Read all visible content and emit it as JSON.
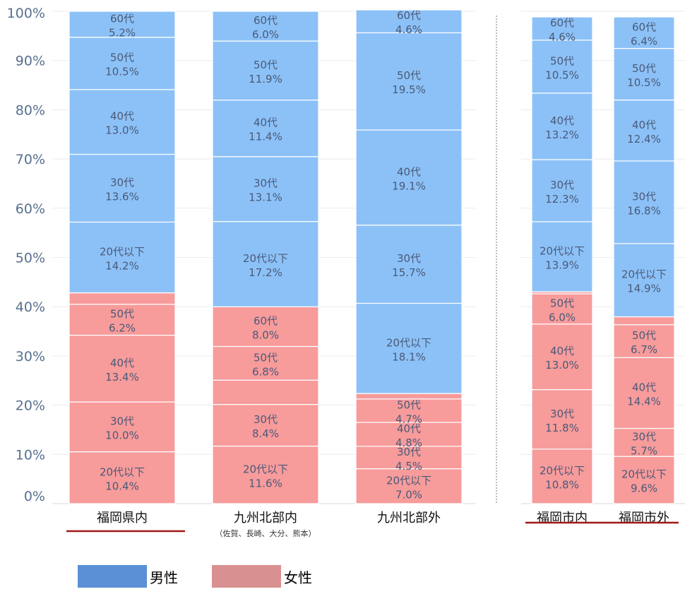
{
  "chart_data": {
    "type": "bar",
    "stacked": true,
    "ylim": [
      0,
      100
    ],
    "yticks": [
      "0%",
      "10%",
      "20%",
      "30%",
      "40%",
      "50%",
      "60%",
      "70%",
      "80%",
      "90%",
      "100%"
    ],
    "grid": true,
    "legend_placement": "bottom-left",
    "colors": {
      "male": "#8cc1f7",
      "female": "#f79b9b",
      "male_legend": "#5b8fd6",
      "female_legend": "#d99090",
      "text": "#4a5a78",
      "axis": "#58708f",
      "underline": "#a01818"
    },
    "legend": [
      {
        "key": "male",
        "label": "男性"
      },
      {
        "key": "female",
        "label": "女性"
      }
    ],
    "categories": [
      {
        "label": "福岡県内",
        "sublabel": "",
        "underline": true,
        "group": 1
      },
      {
        "label": "九州北部内",
        "sublabel": "（佐賀、長崎、大分、熊本）",
        "underline": false,
        "group": 1
      },
      {
        "label": "九州北部外",
        "sublabel": "",
        "underline": false,
        "group": 1
      },
      {
        "label": "福岡市内",
        "sublabel": "",
        "underline": true,
        "group": 2
      },
      {
        "label": "福岡市外",
        "sublabel": "",
        "underline": true,
        "group": 2
      }
    ],
    "bars": [
      {
        "segments": [
          {
            "gender": "female",
            "age": "20代以下",
            "value": 10.4,
            "label": "10.4%"
          },
          {
            "gender": "female",
            "age": "30代",
            "value": 10.0,
            "label": "10.0%"
          },
          {
            "gender": "female",
            "age": "40代",
            "value": 13.4,
            "label": "13.4%"
          },
          {
            "gender": "female",
            "age": "50代",
            "value": 6.2,
            "label": "6.2%"
          },
          {
            "gender": "female",
            "age": "",
            "value": 2.3,
            "label": ""
          },
          {
            "gender": "male",
            "age": "20代以下",
            "value": 14.2,
            "label": "14.2%"
          },
          {
            "gender": "male",
            "age": "30代",
            "value": 13.6,
            "label": "13.6%"
          },
          {
            "gender": "male",
            "age": "40代",
            "value": 13.0,
            "label": "13.0%"
          },
          {
            "gender": "male",
            "age": "50代",
            "value": 10.5,
            "label": "10.5%"
          },
          {
            "gender": "male",
            "age": "60代",
            "value": 5.2,
            "label": "5.2%"
          }
        ]
      },
      {
        "segments": [
          {
            "gender": "female",
            "age": "20代以下",
            "value": 11.6,
            "label": "11.6%"
          },
          {
            "gender": "female",
            "age": "30代",
            "value": 8.4,
            "label": "8.4%"
          },
          {
            "gender": "female",
            "age": "",
            "value": 4.9,
            "label": ""
          },
          {
            "gender": "female",
            "age": "50代",
            "value": 6.8,
            "label": "6.8%"
          },
          {
            "gender": "female",
            "age": "60代",
            "value": 8.0,
            "label": "8.0%"
          },
          {
            "gender": "male",
            "age": "20代以下",
            "value": 17.2,
            "label": "17.2%"
          },
          {
            "gender": "male",
            "age": "30代",
            "value": 13.1,
            "label": "13.1%"
          },
          {
            "gender": "male",
            "age": "40代",
            "value": 11.4,
            "label": "11.4%"
          },
          {
            "gender": "male",
            "age": "50代",
            "value": 11.9,
            "label": "11.9%"
          },
          {
            "gender": "male",
            "age": "60代",
            "value": 6.0,
            "label": "6.0%"
          }
        ]
      },
      {
        "segments": [
          {
            "gender": "female",
            "age": "20代以下",
            "value": 7.0,
            "label": "7.0%"
          },
          {
            "gender": "female",
            "age": "30代",
            "value": 4.5,
            "label": "4.5%"
          },
          {
            "gender": "female",
            "age": "40代",
            "value": 4.8,
            "label": "4.8%"
          },
          {
            "gender": "female",
            "age": "50代",
            "value": 4.7,
            "label": "4.7%"
          },
          {
            "gender": "female",
            "age": "",
            "value": 1.1,
            "label": ""
          },
          {
            "gender": "male",
            "age": "20代以下",
            "value": 18.1,
            "label": "18.1%"
          },
          {
            "gender": "male",
            "age": "30代",
            "value": 15.7,
            "label": "15.7%"
          },
          {
            "gender": "male",
            "age": "40代",
            "value": 19.1,
            "label": "19.1%"
          },
          {
            "gender": "male",
            "age": "50代",
            "value": 19.5,
            "label": "19.5%"
          },
          {
            "gender": "male",
            "age": "60代",
            "value": 4.6,
            "label": "4.6%"
          }
        ]
      },
      {
        "segments": [
          {
            "gender": "female",
            "age": "20代以下",
            "value": 10.8,
            "label": "10.8%"
          },
          {
            "gender": "female",
            "age": "30代",
            "value": 11.8,
            "label": "11.8%"
          },
          {
            "gender": "female",
            "age": "40代",
            "value": 13.0,
            "label": "13.0%"
          },
          {
            "gender": "female",
            "age": "50代",
            "value": 6.0,
            "label": "6.0%"
          },
          {
            "gender": "female",
            "age": "",
            "value": 0.4,
            "label": ""
          },
          {
            "gender": "male",
            "age": "20代以下",
            "value": 13.9,
            "label": "13.9%"
          },
          {
            "gender": "male",
            "age": "30代",
            "value": 12.3,
            "label": "12.3%"
          },
          {
            "gender": "male",
            "age": "40代",
            "value": 13.2,
            "label": "13.2%"
          },
          {
            "gender": "male",
            "age": "50代",
            "value": 10.5,
            "label": "10.5%"
          },
          {
            "gender": "male",
            "age": "60代",
            "value": 4.6,
            "label": "4.6%"
          }
        ]
      },
      {
        "segments": [
          {
            "gender": "female",
            "age": "20代以下",
            "value": 9.6,
            "label": "9.6%"
          },
          {
            "gender": "female",
            "age": "30代",
            "value": 5.7,
            "label": "5.7%"
          },
          {
            "gender": "female",
            "age": "40代",
            "value": 14.4,
            "label": "14.4%"
          },
          {
            "gender": "female",
            "age": "50代",
            "value": 6.7,
            "label": "6.7%"
          },
          {
            "gender": "female",
            "age": "",
            "value": 1.6,
            "label": ""
          },
          {
            "gender": "male",
            "age": "20代以下",
            "value": 14.9,
            "label": "14.9%"
          },
          {
            "gender": "male",
            "age": "30代",
            "value": 16.8,
            "label": "16.8%"
          },
          {
            "gender": "male",
            "age": "40代",
            "value": 12.4,
            "label": "12.4%"
          },
          {
            "gender": "male",
            "age": "50代",
            "value": 10.5,
            "label": "10.5%"
          },
          {
            "gender": "male",
            "age": "60代",
            "value": 6.4,
            "label": "6.4%"
          }
        ]
      }
    ]
  }
}
